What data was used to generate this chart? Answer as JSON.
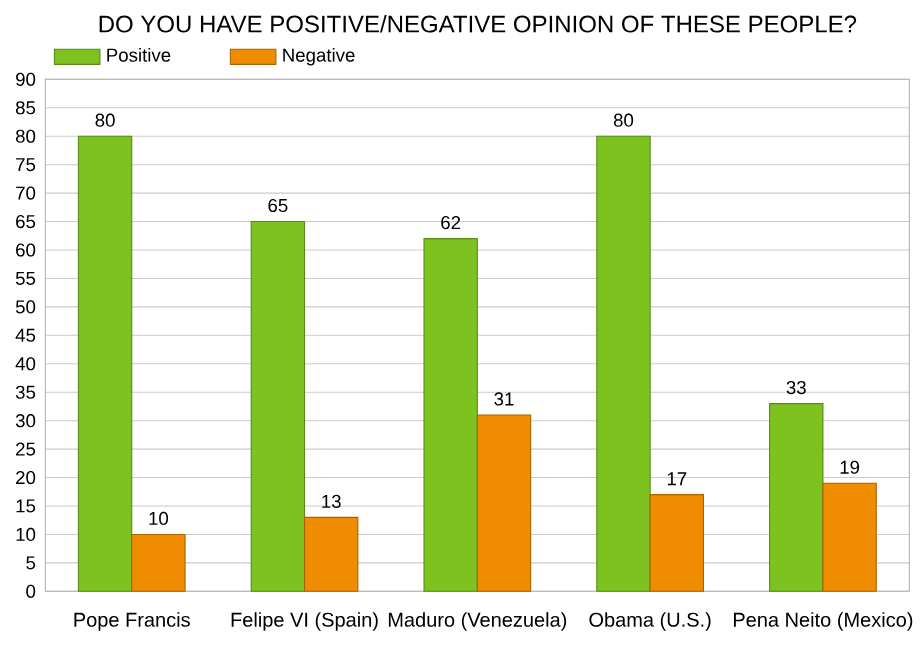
{
  "chart_data": {
    "type": "bar",
    "title": "DO YOU HAVE POSITIVE/NEGATIVE OPINION OF THESE PEOPLE?",
    "categories": [
      "Pope Francis",
      "Felipe VI (Spain)",
      "Maduro (Venezuela)",
      "Obama (U.S.)",
      "Pena Neito (Mexico)"
    ],
    "series": [
      {
        "name": "Positive",
        "color": "#7dc21e",
        "values": [
          80,
          65,
          62,
          80,
          33
        ]
      },
      {
        "name": "Negative",
        "color": "#f08c00",
        "values": [
          10,
          13,
          31,
          17,
          19
        ]
      }
    ],
    "ylim": [
      0,
      90
    ],
    "yticks": [
      0,
      5,
      10,
      15,
      20,
      25,
      30,
      35,
      40,
      45,
      50,
      55,
      60,
      65,
      70,
      75,
      80,
      85,
      90
    ],
    "grid": "y",
    "legend": "top left",
    "data_labels": true
  }
}
